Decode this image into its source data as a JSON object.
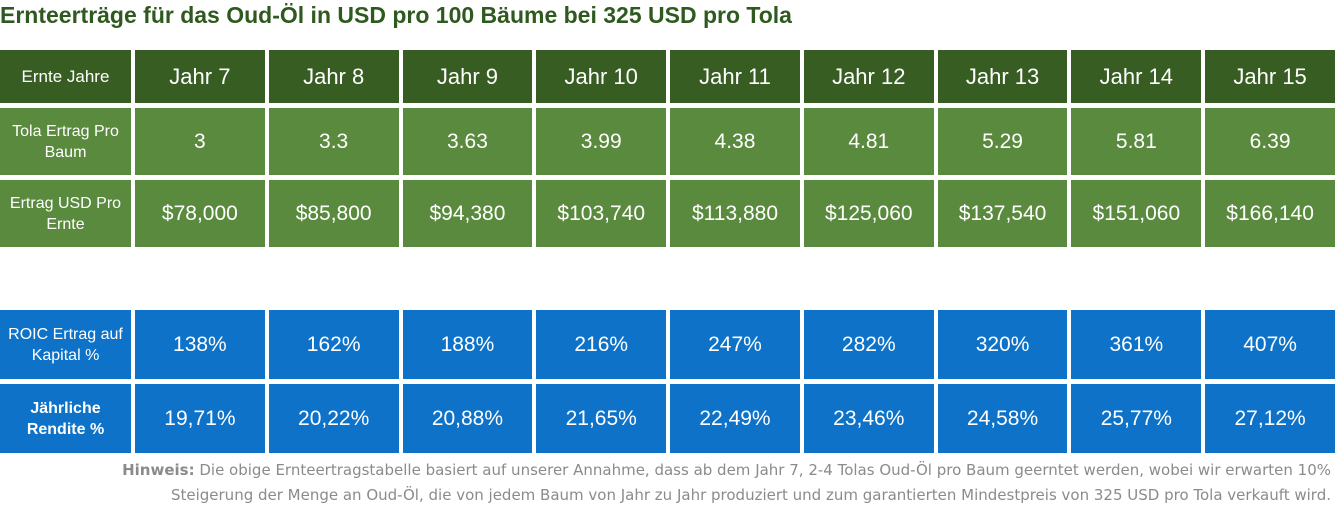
{
  "title": "Ernteerträge für das Oud-Öl in USD pro 100 Bäume bei 325 USD pro Tola",
  "table_top": {
    "header_label": "Ernte Jahre",
    "years": [
      "Jahr 7",
      "Jahr 8",
      "Jahr 9",
      "Jahr 10",
      "Jahr 11",
      "Jahr 12",
      "Jahr 13",
      "Jahr 14",
      "Jahr 15"
    ],
    "rows": [
      {
        "label": "Tola Ertrag Pro Baum",
        "values": [
          "3",
          "3.3",
          "3.63",
          "3.99",
          "4.38",
          "4.81",
          "5.29",
          "5.81",
          "6.39"
        ]
      },
      {
        "label": "Ertrag USD Pro Ernte",
        "values": [
          "$78,000",
          "$85,800",
          "$94,380",
          "$103,740",
          "$113,880",
          "$125,060",
          "$137,540",
          "$151,060",
          "$166,140"
        ]
      }
    ]
  },
  "table_bottom": {
    "rows": [
      {
        "label": "ROIC Ertrag auf Kapital %",
        "values": [
          "138%",
          "162%",
          "188%",
          "216%",
          "247%",
          "282%",
          "320%",
          "361%",
          "407%"
        ]
      },
      {
        "label": "Jährliche Rendite %",
        "values": [
          "19,71%",
          "20,22%",
          "20,88%",
          "21,65%",
          "22,49%",
          "23,46%",
          "24,58%",
          "25,77%",
          "27,12%"
        ]
      }
    ]
  },
  "note": {
    "prefix": "Hinweis:",
    "line1": " Die obige Ernteertragstabelle basiert auf unserer Annahme, dass ab dem Jahr 7, 2-4 Tolas Oud-Öl pro Baum geerntet werden, wobei wir erwarten 10%",
    "line2": "Steigerung der Menge an Oud-Öl, die von jedem Baum von Jahr zu Jahr produziert und zum garantierten Mindestpreis von 325 USD pro Tola verkauft wird."
  },
  "colors": {
    "title": "#2f5a1f",
    "header_green": "#375d23",
    "cell_green": "#5a8a3e",
    "cell_blue": "#0d72c8",
    "note_text": "#8b8b8b"
  }
}
